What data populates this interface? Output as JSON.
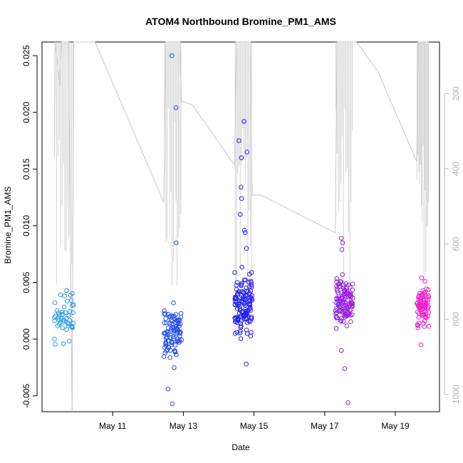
{
  "chart_data": {
    "type": "scatter",
    "title": "ATOM4 Northbound Bromine_PM1_AMS",
    "xlabel": "Date",
    "ylabel": "Bromine_PM1_AMS",
    "x_unit": "day of May",
    "xlim": [
      9.0,
      20.25
    ],
    "ylim": [
      -0.0064,
      0.0262
    ],
    "x_ticks": [
      {
        "value": 11,
        "label": "May 11"
      },
      {
        "value": 13,
        "label": "May 13"
      },
      {
        "value": 15,
        "label": "May 15"
      },
      {
        "value": 17,
        "label": "May 17"
      },
      {
        "value": 19,
        "label": "May 19"
      }
    ],
    "y_ticks": [
      {
        "value": -0.005,
        "label": "-0.005"
      },
      {
        "value": 0.0,
        "label": "0.000"
      },
      {
        "value": 0.005,
        "label": "0.005"
      },
      {
        "value": 0.01,
        "label": "0.010"
      },
      {
        "value": 0.015,
        "label": "0.015"
      },
      {
        "value": 0.02,
        "label": "0.020"
      },
      {
        "value": 0.025,
        "label": "0.025"
      }
    ],
    "secondary_axis": {
      "position": "right",
      "inverted": true,
      "range": [
        63,
        1046
      ],
      "ticks": [
        {
          "value": 200,
          "label": "200"
        },
        {
          "value": 400,
          "label": "400"
        },
        {
          "value": 600,
          "label": "600"
        },
        {
          "value": 800,
          "label": "800"
        },
        {
          "value": 1000,
          "label": "1000"
        }
      ]
    },
    "color_scale": {
      "start": "#29a8e8",
      "middle": "#2222ee",
      "end": "#ff22cc"
    },
    "point_clusters": [
      {
        "x_range": [
          9.35,
          9.9
        ],
        "y_center": 0.0018,
        "y_spread": 0.0011,
        "count": 45,
        "outliers": [
          0.0043,
          0.0038,
          -0.0004
        ]
      },
      {
        "x_range": [
          12.45,
          12.95
        ],
        "y_center": 0.0005,
        "y_spread": 0.0013,
        "count": 95,
        "outliers": [
          0.025,
          0.0204,
          0.0085,
          -0.0044,
          -0.0057,
          0.0032,
          -0.0025
        ]
      },
      {
        "x_range": [
          14.45,
          14.95
        ],
        "y_center": 0.003,
        "y_spread": 0.0016,
        "count": 135,
        "outliers": [
          0.0192,
          0.0175,
          0.0165,
          0.016,
          0.0134,
          0.0124,
          0.011,
          0.0096,
          0.0094,
          0.008,
          -0.0022
        ]
      },
      {
        "x_range": [
          17.3,
          17.8
        ],
        "y_center": 0.0032,
        "y_spread": 0.0013,
        "count": 115,
        "outliers": [
          0.0089,
          0.0085,
          0.0079,
          -0.0026,
          -0.0056,
          -0.001
        ]
      },
      {
        "x_range": [
          19.6,
          19.95
        ],
        "y_center": 0.0028,
        "y_spread": 0.0011,
        "count": 75,
        "outliers": [
          0.0054,
          0.0051,
          0.0036,
          0.0035,
          0.0032,
          0.0026,
          0.0021,
          0.0019,
          0.0016,
          0.0014,
          -0.0005
        ]
      }
    ],
    "secondary_line_path": [
      [
        9.35,
        370
      ],
      [
        9.37,
        63
      ],
      [
        9.5,
        180
      ],
      [
        9.55,
        63
      ],
      [
        9.75,
        63
      ],
      [
        9.85,
        1046
      ],
      [
        9.9,
        63
      ],
      [
        10.5,
        63
      ],
      [
        12.45,
        490
      ],
      [
        12.5,
        63
      ],
      [
        12.65,
        63
      ],
      [
        12.9,
        63
      ],
      [
        12.95,
        220
      ],
      [
        13.25,
        230
      ],
      [
        14.45,
        390
      ],
      [
        14.5,
        63
      ],
      [
        14.9,
        63
      ],
      [
        14.95,
        470
      ],
      [
        15.2,
        470
      ],
      [
        17.3,
        570
      ],
      [
        17.35,
        63
      ],
      [
        17.75,
        63
      ],
      [
        17.9,
        63
      ],
      [
        18.5,
        140
      ],
      [
        19.6,
        380
      ],
      [
        19.65,
        63
      ],
      [
        19.95,
        63
      ]
    ]
  }
}
